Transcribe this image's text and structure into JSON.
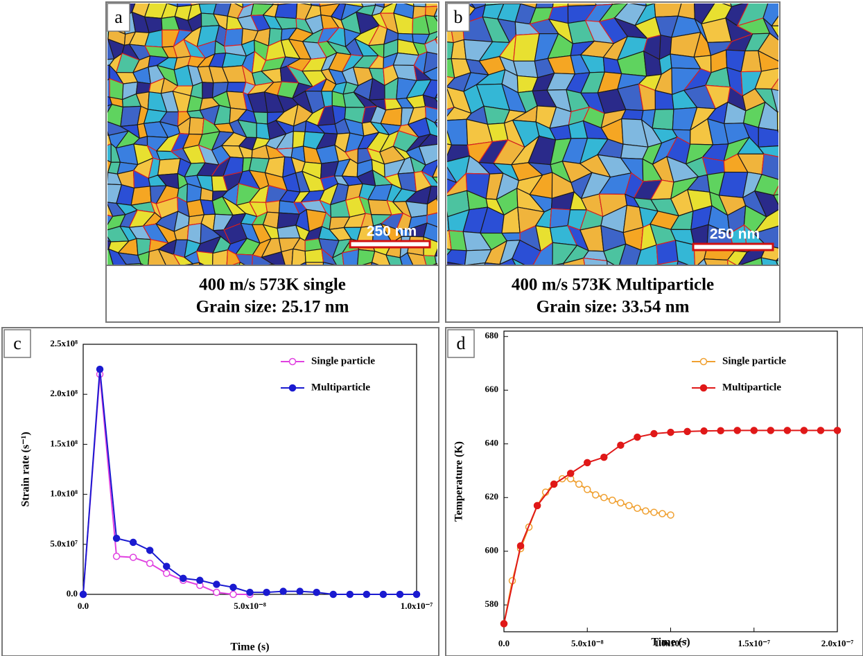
{
  "panels": [
    {
      "label": "a",
      "scale_bar": "250 nm",
      "caption": [
        "400 m/s 573K single",
        "Grain size: 25.17 nm"
      ]
    },
    {
      "label": "b",
      "scale_bar": "250 nm",
      "caption": [
        "400 m/s 573K Multiparticle",
        "Grain size: 33.54 nm"
      ]
    }
  ],
  "chart_data": [
    {
      "type": "line",
      "label": "c",
      "xlabel": "Time (s)",
      "ylabel": "Strain rate (s⁻¹)",
      "xlim": [
        0,
        1e-07
      ],
      "ylim": [
        0,
        250000000
      ],
      "xticks": [
        {
          "value": 0,
          "label": "0.0"
        },
        {
          "value": 5e-08,
          "label": "5.0x10⁻⁸"
        },
        {
          "value": 1e-07,
          "label": "1.0x10⁻⁷"
        }
      ],
      "yticks": [
        {
          "value": 0,
          "label": "0.0"
        },
        {
          "value": 50000000,
          "label": "5.0x10⁷"
        },
        {
          "value": 100000000,
          "label": "1.0x10⁸"
        },
        {
          "value": 150000000,
          "label": "1.5x10⁸"
        },
        {
          "value": 200000000,
          "label": "2.0x10⁸"
        },
        {
          "value": 250000000,
          "label": "2.5x10⁸"
        }
      ],
      "legend": "upper right",
      "series": [
        {
          "name": "Single particle",
          "color": "#e040e0",
          "filled": false,
          "x": [
            0,
            5e-09,
            1e-08,
            1.5e-08,
            2e-08,
            2.5e-08,
            3e-08,
            3.5e-08,
            4e-08,
            4.5e-08,
            5e-08
          ],
          "values": [
            0,
            220000000,
            38000000,
            37000000,
            31000000,
            21000000,
            14000000,
            9000000,
            2000000,
            0,
            0
          ]
        },
        {
          "name": "Multiparticle",
          "color": "#1a1ad0",
          "filled": true,
          "x": [
            0,
            5e-09,
            1e-08,
            1.5e-08,
            2e-08,
            2.5e-08,
            3e-08,
            3.5e-08,
            4e-08,
            4.5e-08,
            5e-08,
            5.5e-08,
            6e-08,
            6.5e-08,
            7e-08,
            7.5e-08,
            8e-08,
            8.5e-08,
            9e-08,
            9.5e-08,
            1e-07
          ],
          "values": [
            0,
            225000000,
            56000000,
            52000000,
            44000000,
            28000000,
            16000000,
            14000000,
            10000000,
            7000000,
            2000000,
            2000000,
            3000000,
            3000000,
            2000000,
            0,
            0,
            0,
            0,
            0,
            0
          ]
        }
      ]
    },
    {
      "type": "line",
      "label": "d",
      "xlabel": "Time (s)",
      "ylabel": "Temperature (K)",
      "xlim": [
        0,
        2e-07
      ],
      "ylim": [
        570,
        682
      ],
      "xticks": [
        {
          "value": 0,
          "label": "0.0"
        },
        {
          "value": 5e-08,
          "label": "5.0x10⁻⁸"
        },
        {
          "value": 1e-07,
          "label": "1.0x10⁻⁷"
        },
        {
          "value": 1.5e-07,
          "label": "1.5x10⁻⁷"
        },
        {
          "value": 2e-07,
          "label": "2.0x10⁻⁷"
        }
      ],
      "yticks": [
        580,
        600,
        620,
        640,
        660,
        680
      ],
      "legend": "upper right",
      "series": [
        {
          "name": "Single particle",
          "color": "#f0a030",
          "filled": false,
          "x": [
            0,
            5e-09,
            1e-08,
            1.5e-08,
            2e-08,
            2.5e-08,
            3e-08,
            3.5e-08,
            4e-08,
            4.5e-08,
            5e-08,
            5.5e-08,
            6e-08,
            6.5e-08,
            7e-08,
            7.5e-08,
            8e-08,
            8.5e-08,
            9e-08,
            9.5e-08,
            1e-07
          ],
          "values": [
            573,
            589,
            601,
            609,
            617,
            622,
            625,
            627,
            627,
            625,
            623,
            621,
            620,
            619,
            618,
            617,
            616,
            615,
            614.5,
            614,
            613.5
          ]
        },
        {
          "name": "Multiparticle",
          "color": "#e01818",
          "filled": true,
          "x": [
            0,
            1e-08,
            2e-08,
            3e-08,
            4e-08,
            5e-08,
            6e-08,
            7e-08,
            8e-08,
            9e-08,
            1e-07,
            1.1e-07,
            1.2e-07,
            1.3e-07,
            1.4e-07,
            1.5e-07,
            1.6e-07,
            1.7e-07,
            1.8e-07,
            1.9e-07,
            2e-07
          ],
          "values": [
            573,
            602,
            617,
            625,
            629,
            633,
            635,
            639.5,
            642.5,
            643.8,
            644.3,
            644.6,
            644.8,
            644.9,
            645,
            645,
            645,
            645,
            645,
            645,
            645
          ]
        }
      ]
    }
  ]
}
